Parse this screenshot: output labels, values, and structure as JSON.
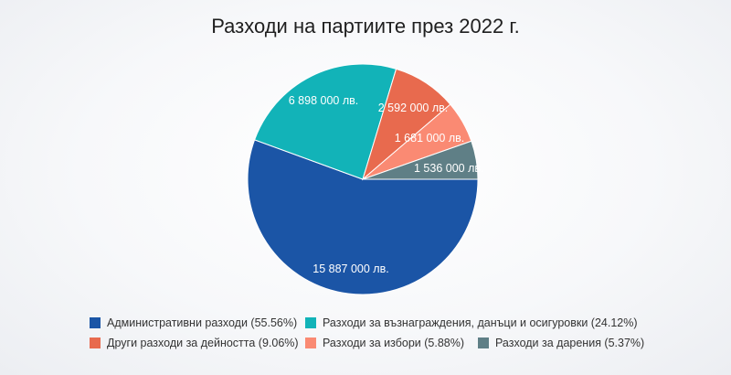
{
  "chart_data": {
    "type": "pie",
    "title": "Разходи на партиите през 2022 г.",
    "legend_position": "bottom",
    "slices": [
      {
        "name": "Административни разходи",
        "value": 15887000,
        "percent": 55.56,
        "value_label": "15 887 000 лв.",
        "legend_label": "Административни разходи (55.56%)",
        "color": "#1b55a6"
      },
      {
        "name": "Разходи за възнаграждения, данъци и осигуровки",
        "value": 6898000,
        "percent": 24.12,
        "value_label": "6 898 000 лв.",
        "legend_label": "Разходи за възнаграждения, данъци и осигуровки (24.12%)",
        "color": "#12b3b8"
      },
      {
        "name": "Други разходи за дейността",
        "value": 2592000,
        "percent": 9.06,
        "value_label": "2 592 000 лв.",
        "legend_label": "Други разходи за дейността (9.06%)",
        "color": "#e86a4e"
      },
      {
        "name": "Разходи за избори",
        "value": 1681000,
        "percent": 5.88,
        "value_label": "1 681 000 лв.",
        "legend_label": "Разходи за избори (5.88%)",
        "color": "#fa8a73"
      },
      {
        "name": "Разходи за дарения",
        "value": 1536000,
        "percent": 5.37,
        "value_label": "1 536 000 лв.",
        "legend_label": "Разходи за дарения (5.37%)",
        "color": "#5f7f86"
      }
    ]
  }
}
